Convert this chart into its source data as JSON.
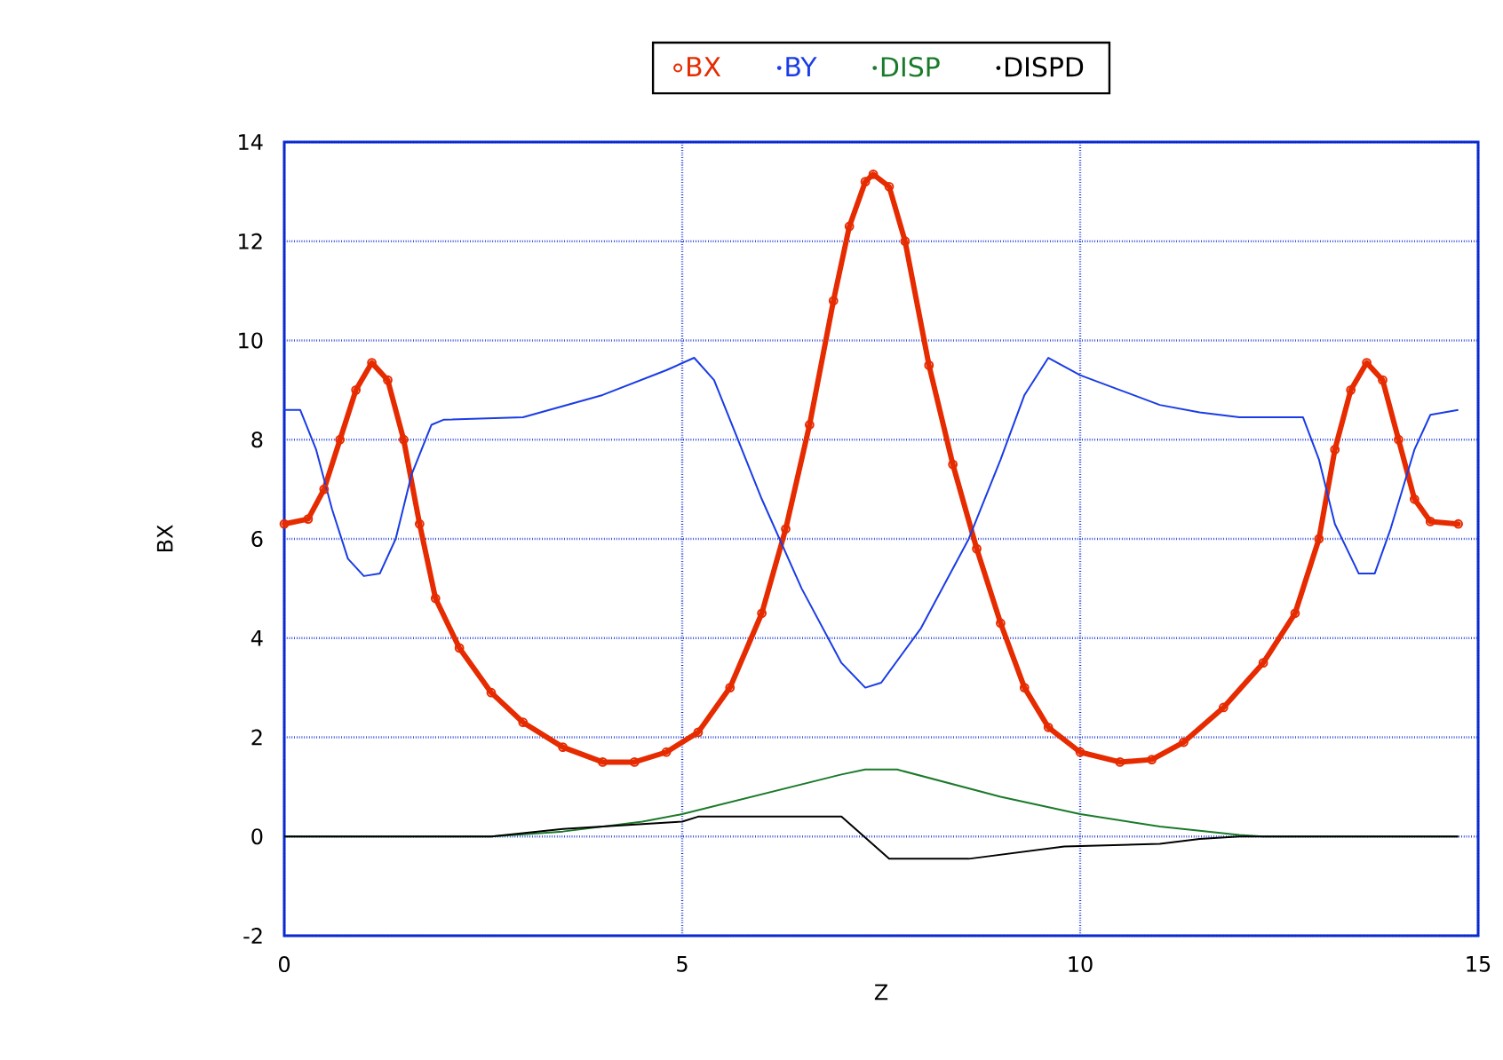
{
  "chart_data": {
    "type": "line",
    "xlabel": "Z",
    "ylabel": "BX",
    "xlim": [
      0,
      15
    ],
    "ylim": [
      -2,
      14
    ],
    "xticks": [
      0,
      5,
      10,
      15
    ],
    "yticks": [
      -2,
      0,
      2,
      4,
      6,
      8,
      10,
      12,
      14
    ],
    "grid": true,
    "legend": "top",
    "line_style": "solid",
    "series": [
      {
        "name": "BX",
        "color": "#e62b00",
        "marker": "circle",
        "x": [
          0,
          0.3,
          0.5,
          0.7,
          0.9,
          1.1,
          1.3,
          1.5,
          1.7,
          1.9,
          2.2,
          2.6,
          3.0,
          3.5,
          4.0,
          4.4,
          4.8,
          5.2,
          5.6,
          6.0,
          6.3,
          6.6,
          6.9,
          7.1,
          7.3,
          7.4,
          7.6,
          7.8,
          8.1,
          8.4,
          8.7,
          9.0,
          9.3,
          9.6,
          10.0,
          10.5,
          10.9,
          11.3,
          11.8,
          12.3,
          12.7,
          13.0,
          13.2,
          13.4,
          13.6,
          13.8,
          14.0,
          14.2,
          14.4,
          14.75
        ],
        "values": [
          6.3,
          6.4,
          7.0,
          8.0,
          9.0,
          9.55,
          9.2,
          8.0,
          6.3,
          4.8,
          3.8,
          2.9,
          2.3,
          1.8,
          1.5,
          1.5,
          1.7,
          2.1,
          3.0,
          4.5,
          6.2,
          8.3,
          10.8,
          12.3,
          13.2,
          13.35,
          13.1,
          12.0,
          9.5,
          7.5,
          5.8,
          4.3,
          3.0,
          2.2,
          1.7,
          1.5,
          1.55,
          1.9,
          2.6,
          3.5,
          4.5,
          6.0,
          7.8,
          9.0,
          9.55,
          9.2,
          8.0,
          6.8,
          6.35,
          6.3
        ]
      },
      {
        "name": "BY",
        "color": "#1a3ce6",
        "marker": "none",
        "x": [
          0,
          0.2,
          0.4,
          0.6,
          0.8,
          1.0,
          1.2,
          1.4,
          1.6,
          1.85,
          2.0,
          3.0,
          4.0,
          4.8,
          5.15,
          5.4,
          5.7,
          6.0,
          6.5,
          7.0,
          7.3,
          7.5,
          8.0,
          8.6,
          9.0,
          9.3,
          9.6,
          10.0,
          10.5,
          11.0,
          11.5,
          12.0,
          12.8,
          13.0,
          13.2,
          13.5,
          13.7,
          13.9,
          14.2,
          14.4,
          14.75
        ],
        "values": [
          8.6,
          8.6,
          7.8,
          6.6,
          5.6,
          5.25,
          5.3,
          6.0,
          7.3,
          8.3,
          8.4,
          8.45,
          8.9,
          9.4,
          9.65,
          9.2,
          8.0,
          6.8,
          5.0,
          3.5,
          3.0,
          3.1,
          4.2,
          6.0,
          7.6,
          8.9,
          9.65,
          9.3,
          9.0,
          8.7,
          8.55,
          8.45,
          8.45,
          7.6,
          6.3,
          5.3,
          5.3,
          6.2,
          7.8,
          8.5,
          8.6
        ]
      },
      {
        "name": "DISP",
        "color": "#1a7a2a",
        "marker": "none",
        "x": [
          0,
          2.6,
          3.5,
          4.5,
          5.0,
          6.0,
          7.0,
          7.3,
          7.7,
          9.0,
          10.0,
          11.0,
          12.0,
          12.3,
          14.75
        ],
        "values": [
          0,
          0,
          0.1,
          0.3,
          0.45,
          0.85,
          1.25,
          1.35,
          1.35,
          0.8,
          0.45,
          0.2,
          0.03,
          0,
          0
        ]
      },
      {
        "name": "DISPD",
        "color": "#000000",
        "marker": "none",
        "x": [
          0,
          2.6,
          3.5,
          4.5,
          5.0,
          5.2,
          7.0,
          7.6,
          8.6,
          9.8,
          11.0,
          11.5,
          12.0,
          14.75
        ],
        "values": [
          0,
          0,
          0.15,
          0.25,
          0.3,
          0.4,
          0.4,
          -0.45,
          -0.45,
          -0.2,
          -0.15,
          -0.05,
          0,
          0
        ]
      }
    ]
  }
}
